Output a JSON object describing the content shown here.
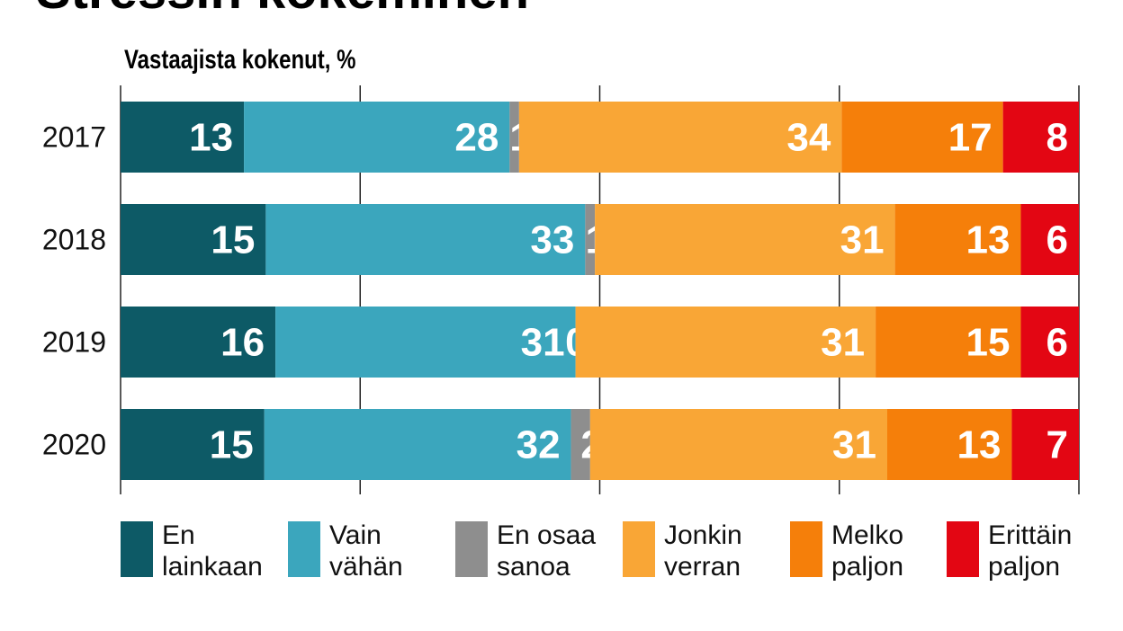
{
  "chart_data": {
    "type": "bar",
    "orientation": "horizontal",
    "stacked": true,
    "title": "Stressin kokeminen",
    "subtitle": "Vastaajista kokenut, %",
    "categories": [
      "2017",
      "2018",
      "2019",
      "2020"
    ],
    "series": [
      {
        "name": "En lainkaan",
        "color": "#0d5a66",
        "values": [
          13,
          15,
          16,
          15
        ]
      },
      {
        "name": "Vain vähän",
        "color": "#3ba6bd",
        "values": [
          28,
          33,
          31,
          32
        ]
      },
      {
        "name": "En osaa sanoa",
        "color": "#8e8e8e",
        "values": [
          1,
          1,
          0,
          2
        ]
      },
      {
        "name": "Jonkin verran",
        "color": "#f9a636",
        "values": [
          34,
          31,
          31,
          31
        ]
      },
      {
        "name": "Melko paljon",
        "color": "#f57f0a",
        "values": [
          17,
          13,
          15,
          13
        ]
      },
      {
        "name": "Erittäin paljon",
        "color": "#e30613",
        "values": [
          8,
          6,
          6,
          7
        ]
      }
    ],
    "xlim": [
      0,
      100
    ],
    "grid": true,
    "legend": "bottom",
    "legend_labels": [
      [
        "En",
        "lainkaan"
      ],
      [
        "Vain",
        "vähän"
      ],
      [
        "En osaa",
        "sanoa"
      ],
      [
        "Jonkin",
        "verran"
      ],
      [
        "Melko",
        "paljon"
      ],
      [
        "Erittäin",
        "paljon"
      ]
    ]
  }
}
